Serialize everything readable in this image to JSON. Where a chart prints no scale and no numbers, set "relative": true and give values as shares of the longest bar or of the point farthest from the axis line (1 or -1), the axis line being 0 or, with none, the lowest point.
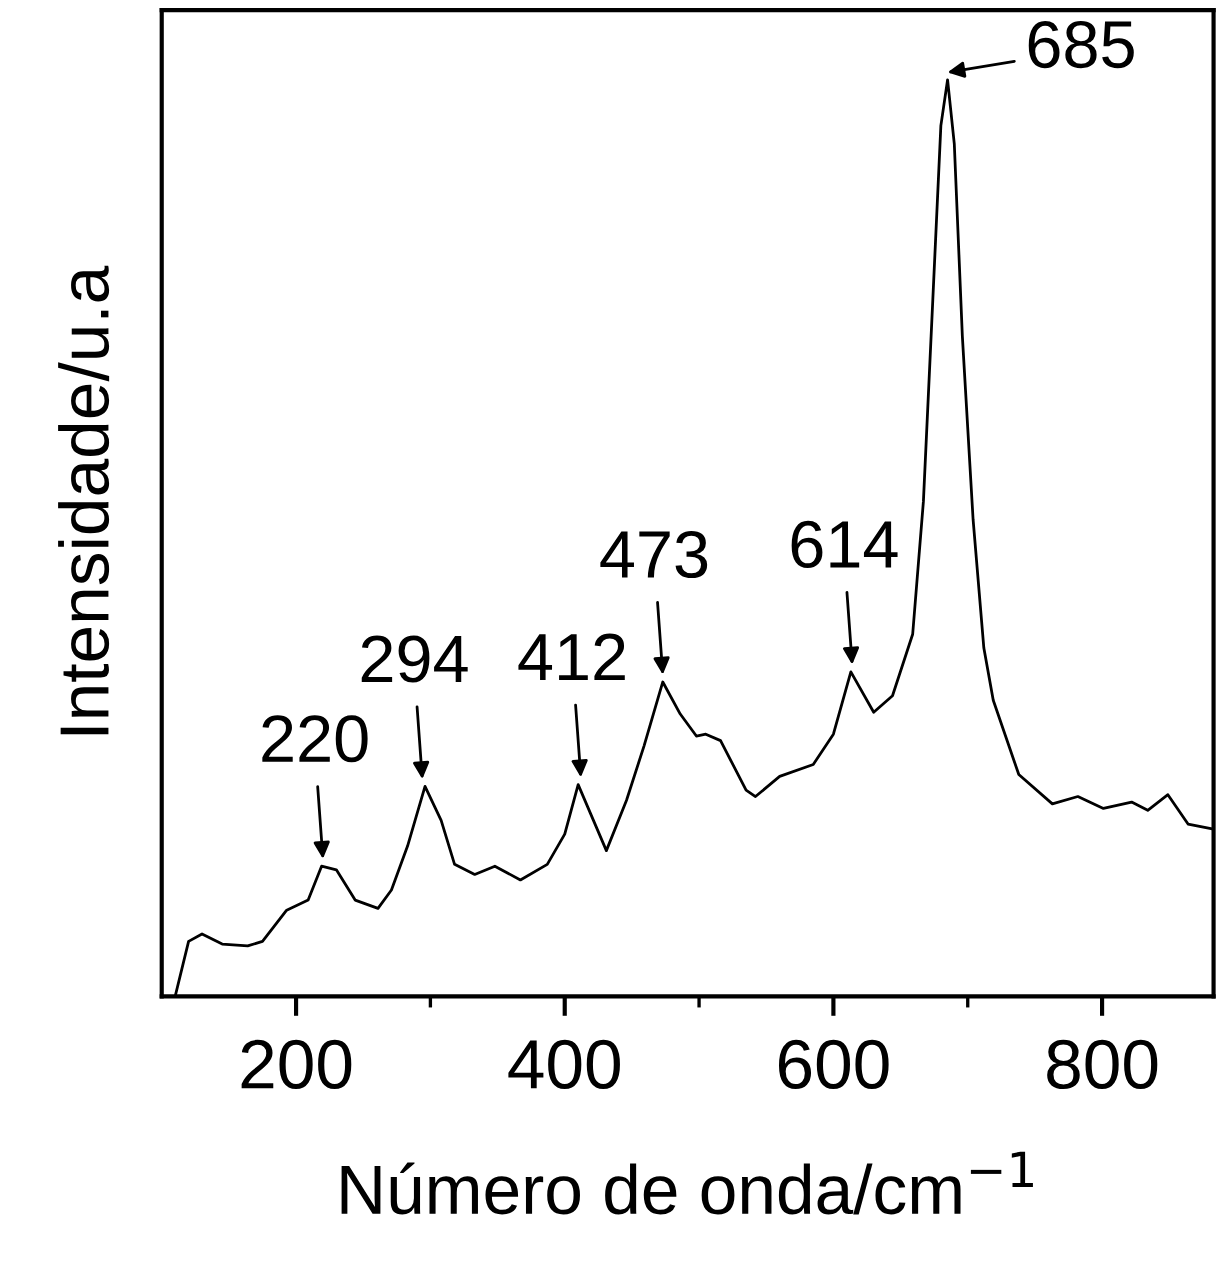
{
  "chart_data": {
    "type": "line",
    "relative": true,
    "xlabel": "Número de onda/cm$^{−1}$",
    "ylabel": "Intensidade/u.a",
    "color": "#000000",
    "line_style": "solid",
    "marker": "none",
    "grid": false,
    "legend": false,
    "tick_labels": "x",
    "xlim": [
      100,
      883
    ],
    "xticks": [
      200,
      {
        "value": 300,
        "label": null
      },
      400,
      {
        "value": 500,
        "label": null
      },
      600,
      {
        "value": 700,
        "label": null
      },
      800
    ],
    "x": [
      110,
      120,
      130,
      145,
      164,
      175,
      193,
      209,
      219,
      230,
      244,
      261,
      271,
      283,
      296,
      308,
      318,
      333,
      348,
      367,
      387,
      400,
      410,
      431,
      446,
      459,
      473,
      486,
      498,
      505,
      516,
      535,
      542,
      560,
      585,
      600,
      613,
      630,
      644,
      659,
      667,
      674,
      680,
      685,
      690,
      696,
      704,
      712,
      719,
      738,
      763,
      782,
      801,
      822,
      834,
      849,
      864,
      881
    ],
    "values": [
      0.0,
      0.06,
      0.068,
      0.057,
      0.055,
      0.06,
      0.094,
      0.105,
      0.142,
      0.138,
      0.105,
      0.096,
      0.116,
      0.164,
      0.229,
      0.192,
      0.144,
      0.133,
      0.142,
      0.127,
      0.144,
      0.177,
      0.231,
      0.159,
      0.214,
      0.273,
      0.343,
      0.308,
      0.284,
      0.286,
      0.279,
      0.225,
      0.218,
      0.24,
      0.253,
      0.286,
      0.354,
      0.31,
      0.328,
      0.395,
      0.54,
      0.76,
      0.95,
      1.0,
      0.93,
      0.72,
      0.52,
      0.38,
      0.323,
      0.242,
      0.21,
      0.218,
      0.205,
      0.212,
      0.203,
      0.22,
      0.188,
      0.183
    ],
    "annotations": [
      {
        "text": "220",
        "x": 220,
        "y": 0.142
      },
      {
        "text": "294",
        "x": 294,
        "y": 0.229
      },
      {
        "text": "412",
        "x": 412,
        "y": 0.231
      },
      {
        "text": "473",
        "x": 473,
        "y": 0.343
      },
      {
        "text": "614",
        "x": 614,
        "y": 0.354
      },
      {
        "text": "685",
        "x": 685,
        "y": 1.0
      }
    ]
  }
}
